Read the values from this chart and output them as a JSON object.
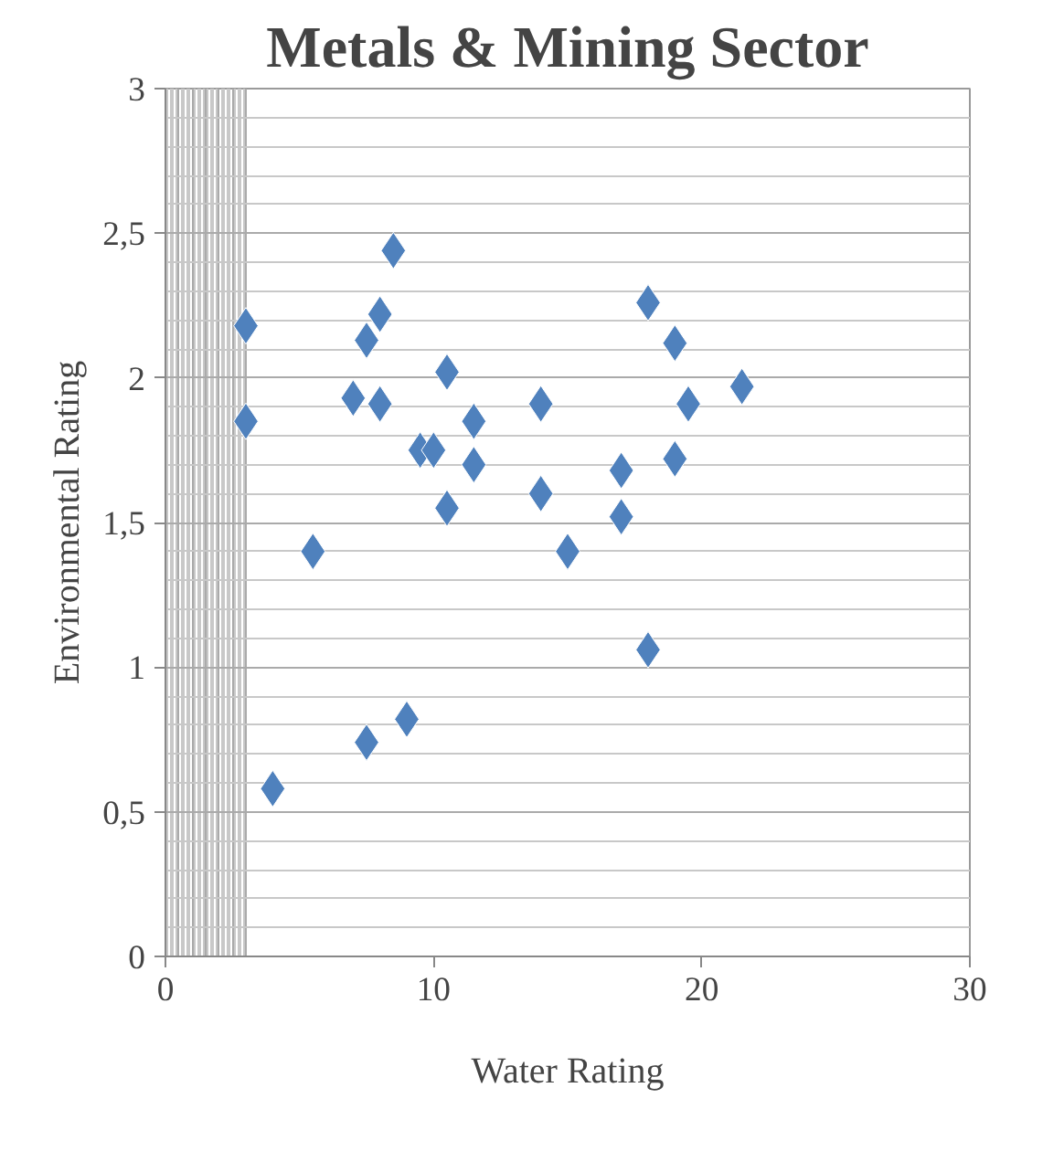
{
  "chart_data": {
    "type": "scatter",
    "title": "Metals & Mining Sector",
    "xlabel": "Water Rating",
    "ylabel": "Environmental Rating",
    "x": [
      3,
      3,
      4,
      5.5,
      7,
      7.5,
      8,
      8,
      8.5,
      7.5,
      9,
      9.5,
      10,
      10.5,
      10.5,
      11.5,
      11.5,
      14,
      14,
      15,
      17,
      17,
      18,
      18,
      19,
      19,
      19.5,
      21.5
    ],
    "series": [
      {
        "color": "#4f81bd",
        "values": [
          2.18,
          1.85,
          0.58,
          1.4,
          1.93,
          2.13,
          2.22,
          1.91,
          2.44,
          0.74,
          0.82,
          1.75,
          1.75,
          2.02,
          1.55,
          1.85,
          1.7,
          1.91,
          1.6,
          1.4,
          1.68,
          1.52,
          2.26,
          1.06,
          2.12,
          1.72,
          1.91,
          1.97
        ]
      }
    ],
    "xlim": [
      0,
      30
    ],
    "xticks": [
      0,
      10,
      20,
      30
    ],
    "ylim": [
      0,
      3
    ],
    "yticks": [
      0,
      {
        "value": 0.5,
        "label": "0,5"
      },
      1,
      {
        "value": 1.5,
        "label": "1,5"
      },
      2,
      {
        "value": 2.5,
        "label": "2,5"
      },
      3
    ],
    "grid": true,
    "marker": "diamond"
  }
}
